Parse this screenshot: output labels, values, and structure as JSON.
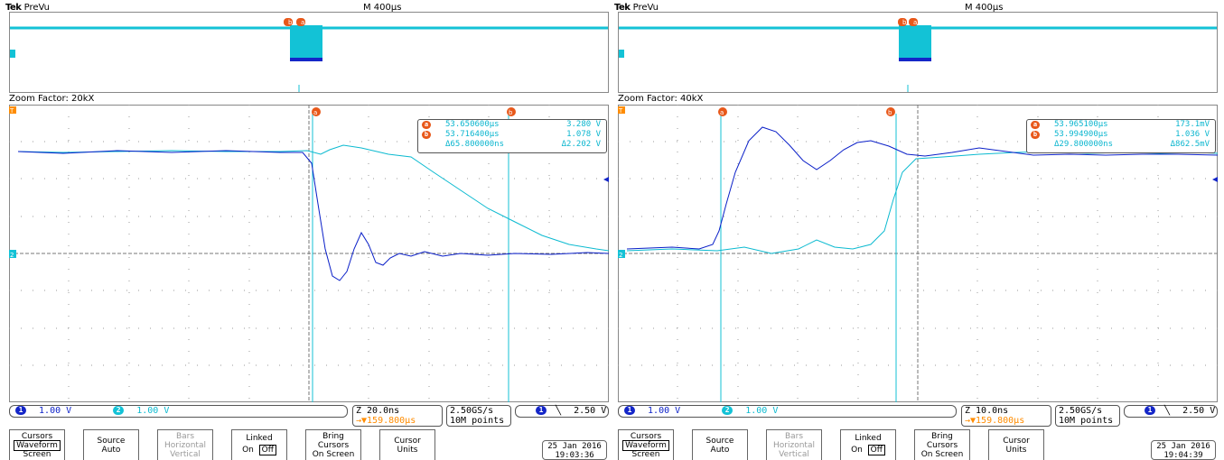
{
  "scopes": [
    {
      "header": {
        "brand": "Tek",
        "mode": "PreVu",
        "timebase": "M 400μs"
      },
      "zoom_factor": "Zoom Factor: 20kX",
      "cursors": {
        "a": {
          "time": "53.650600μs",
          "value": "3.280 V"
        },
        "b": {
          "time": "53.716400μs",
          "value": "1.078 V"
        },
        "delta": {
          "time": "Δ65.800000ns",
          "value": "Δ2.202 V"
        }
      },
      "ch1": {
        "badge": "1",
        "scale": "1.00 V"
      },
      "ch2": {
        "badge": "2",
        "scale": "1.00 V"
      },
      "zoom": {
        "scale": "Z 20.0ns",
        "position": "→▼159.800μs"
      },
      "acq": {
        "rate": "2.50GS/s",
        "points": "10M points"
      },
      "trigger": {
        "badge": "1",
        "slope": "╲",
        "level": "2.50 V"
      },
      "menu": [
        {
          "line1": "Cursors",
          "line2": "Waveform",
          "line3": "Screen",
          "boxed": true
        },
        {
          "line1": "Source",
          "line2": "Auto",
          "line3": ""
        },
        {
          "line1": "Bars",
          "line2": "Horizontal",
          "line3": "Vertical",
          "dim": true
        },
        {
          "line1": "Linked",
          "line2": "On",
          "line3": "Off",
          "linked": true
        },
        {
          "line1": "Bring",
          "line2": "Cursors",
          "line3": "On Screen"
        },
        {
          "line1": "Cursor",
          "line2": "Units",
          "line3": ""
        }
      ],
      "date": "25 Jan 2016",
      "time": "19:03:36"
    },
    {
      "header": {
        "brand": "Tek",
        "mode": "PreVu",
        "timebase": "M 400μs"
      },
      "zoom_factor": "Zoom Factor: 40kX",
      "cursors": {
        "a": {
          "time": "53.965100μs",
          "value": "173.1mV"
        },
        "b": {
          "time": "53.994900μs",
          "value": "1.036 V"
        },
        "delta": {
          "time": "Δ29.800000ns",
          "value": "Δ862.5mV"
        }
      },
      "ch1": {
        "badge": "1",
        "scale": "1.00 V"
      },
      "ch2": {
        "badge": "2",
        "scale": "1.00 V"
      },
      "zoom": {
        "scale": "Z 10.0ns",
        "position": "→▼159.800μs"
      },
      "acq": {
        "rate": "2.50GS/s",
        "points": "10M points"
      },
      "trigger": {
        "badge": "1",
        "slope": "╲",
        "level": "2.50 V"
      },
      "menu": [
        {
          "line1": "Cursors",
          "line2": "Waveform",
          "line3": "Screen",
          "boxed": true
        },
        {
          "line1": "Source",
          "line2": "Auto",
          "line3": ""
        },
        {
          "line1": "Bars",
          "line2": "Horizontal",
          "line3": "Vertical",
          "dim": true
        },
        {
          "line1": "Linked",
          "line2": "On",
          "line3": "Off",
          "linked": true
        },
        {
          "line1": "Bring",
          "line2": "Cursors",
          "line3": "On Screen"
        },
        {
          "line1": "Cursor",
          "line2": "Units",
          "line3": ""
        }
      ],
      "date": "25 Jan 2016",
      "time": "19:04:39"
    }
  ],
  "marker_labels": {
    "a": "a",
    "b": "b",
    "trigger": "T",
    "ch2_ground": "2"
  },
  "colors": {
    "ch1": "#0a1fc8",
    "ch2": "#0bbad0",
    "cursor_badge": "#e8581a",
    "grid": "#9a9a9a"
  }
}
